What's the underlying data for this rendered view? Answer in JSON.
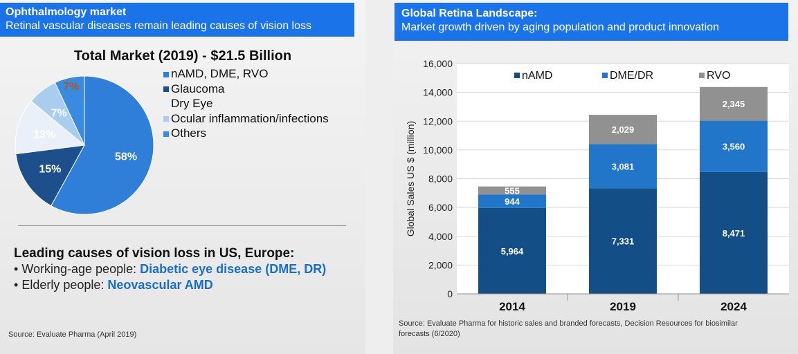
{
  "left": {
    "banner_title": "Ophthalmology market",
    "banner_subtitle": "Retinal vascular diseases remain leading causes of vision loss",
    "causes_heading": "Leading causes of vision loss in US, Europe:",
    "bullet": "•",
    "causes": [
      {
        "prefix": "Working-age people: ",
        "highlight": "Diabetic eye disease (DME, DR)"
      },
      {
        "prefix": "Elderly people: ",
        "highlight": "Neovascular AMD"
      }
    ],
    "source": "Source: Evaluate Pharma (April 2019)"
  },
  "right": {
    "banner_title": "Global Retina Landscape:",
    "banner_subtitle": "Market growth driven by aging population and product innovation",
    "source_line1": "Source: Evaluate Pharma for historic sales and branded forecasts, Decision Resources for biosimilar",
    "source_line2": "forecasts (6/2020)"
  },
  "chart_data": [
    {
      "type": "pie",
      "title": "Total Market (2019) - $21.5 Billion",
      "slices": [
        {
          "label": "nAMD, DME, RVO",
          "value": 58,
          "text": "58%",
          "color": "#2f7ed8"
        },
        {
          "label": "Glaucoma",
          "value": 15,
          "text": "15%",
          "color": "#1d4f8c"
        },
        {
          "label": "Dry Eye",
          "value": 13,
          "text": "13%",
          "color": "#e9f0fa"
        },
        {
          "label": "Ocular inflammation/infections",
          "value": 7,
          "text": "7%",
          "color": "#a9cdef"
        },
        {
          "label": "Others",
          "value": 7,
          "text": "7%",
          "color": "#3a8be0"
        }
      ]
    },
    {
      "type": "bar",
      "stacked": true,
      "ylabel": "Global Sales US $ (million)",
      "ylim": [
        0,
        16000
      ],
      "yticks": [
        "0",
        "2,000",
        "4,000",
        "6,000",
        "8,000",
        "10,000",
        "12,000",
        "14,000",
        "16,000"
      ],
      "categories": [
        "2014",
        "2019",
        "2024"
      ],
      "series": [
        {
          "name": "nAMD",
          "color": "#134f86",
          "values": [
            5964,
            7331,
            8471
          ],
          "labels": [
            "5,964",
            "7,331",
            "8,471"
          ]
        },
        {
          "name": "DME/DR",
          "color": "#2176c9",
          "values": [
            944,
            3081,
            3560
          ],
          "labels": [
            "944",
            "3,081",
            "3,560"
          ]
        },
        {
          "name": "RVO",
          "color": "#919191",
          "values": [
            555,
            2029,
            2345
          ],
          "labels": [
            "555",
            "2,029",
            "2,345"
          ]
        }
      ]
    }
  ]
}
